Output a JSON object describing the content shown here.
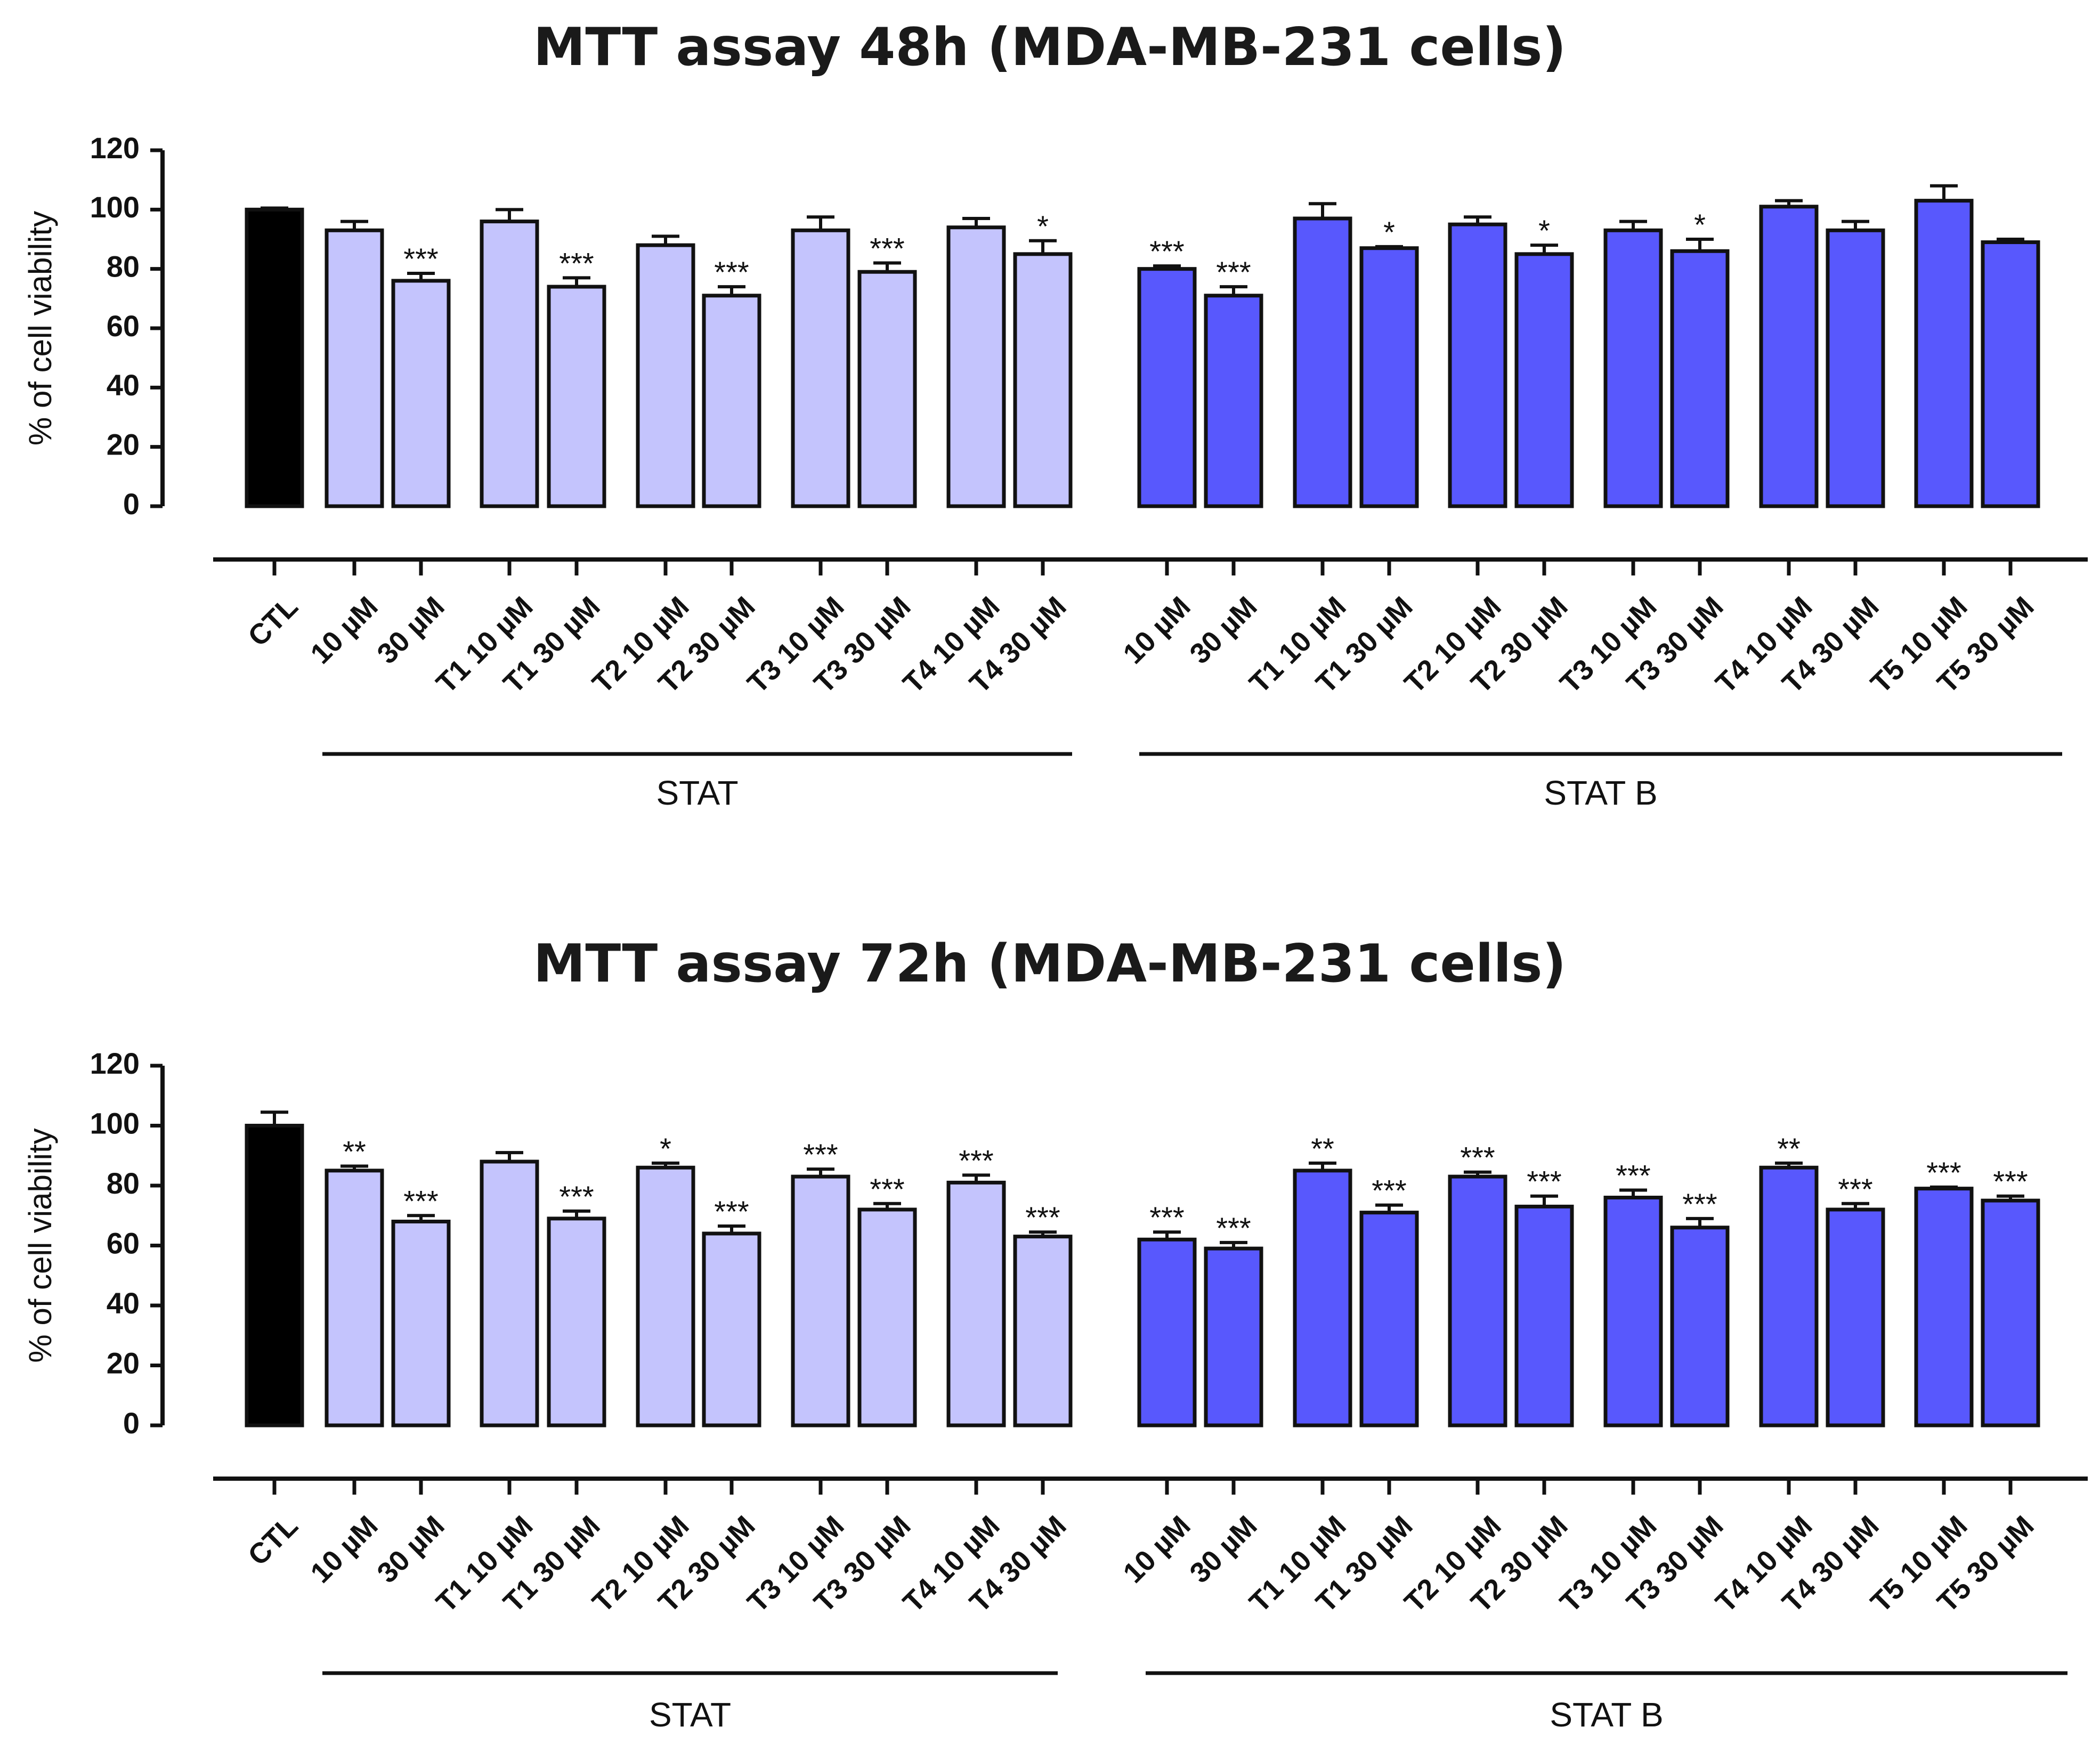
{
  "chart_data": [
    {
      "type": "bar",
      "title": "MTT assay 48h (MDA-MB-231 cells)",
      "ylabel": "% of cell viability",
      "xlabel": "",
      "ylim": [
        0,
        120
      ],
      "yticks": [
        0,
        20,
        40,
        60,
        80,
        100,
        120
      ],
      "categories": [
        "CTL",
        "10 µM",
        "30 µM",
        "T1 10 µM",
        "T1 30 µM",
        "T2 10 µM",
        "T2 30 µM",
        "T3 10 µM",
        "T3 30 µM",
        "T4 10 µM",
        "T4 30 µM",
        "10 µM",
        "30 µM",
        "T1 10 µM",
        "T1 30 µM",
        "T2 10 µM",
        "T2 30 µM",
        "T3 10 µM",
        "T3 30 µM",
        "T4 10 µM",
        "T4 30 µM",
        "T5 10 µM",
        "T5 30 µM"
      ],
      "values": [
        100,
        93,
        76,
        96,
        74,
        88,
        71,
        93,
        79,
        94,
        85,
        80,
        71,
        97,
        87,
        95,
        85,
        93,
        86,
        101,
        93,
        103,
        89
      ],
      "errors": [
        0.5,
        3,
        2.5,
        4,
        3,
        3,
        3,
        4.5,
        3,
        3,
        4.5,
        1,
        3,
        5,
        0.5,
        2.5,
        3,
        3,
        4,
        2,
        3,
        5,
        1
      ],
      "significance": [
        "",
        "",
        "***",
        "",
        "***",
        "",
        "***",
        "",
        "***",
        "",
        "*",
        "***",
        "***",
        "",
        "*",
        "",
        "*",
        "",
        "*",
        "",
        "",
        "",
        ""
      ],
      "groups": [
        {
          "label": "STAT",
          "categories": [
            "10 µM",
            "30 µM",
            "T1 10 µM",
            "T1 30 µM",
            "T2 10 µM",
            "T2 30 µM",
            "T3 10 µM",
            "T3 30 µM",
            "T4 10 µM",
            "T4 30 µM"
          ]
        },
        {
          "label": "STAT B",
          "categories": [
            "10 µM",
            "30 µM",
            "T1 10 µM",
            "T1 30 µM",
            "T2 10 µM",
            "T2 30 µM",
            "T3 10 µM",
            "T3 30 µM",
            "T4 10 µM",
            "T4 30 µM",
            "T5 10 µM",
            "T5 30 µM"
          ]
        }
      ],
      "colors": {
        "CTL": "#000000",
        "STAT": "#c4c4fd",
        "STAT B": "#5858fd"
      }
    },
    {
      "type": "bar",
      "title": "MTT assay 72h (MDA-MB-231 cells)",
      "ylabel": "% of cell viability",
      "xlabel": "",
      "ylim": [
        0,
        120
      ],
      "yticks": [
        0,
        20,
        40,
        60,
        80,
        100,
        120
      ],
      "categories": [
        "CTL",
        "10 µM",
        "30 µM",
        "T1 10 µM",
        "T1 30 µM",
        "T2 10 µM",
        "T2 30 µM",
        "T3 10 µM",
        "T3 30 µM",
        "T4 10 µM",
        "T4 30 µM",
        "10 µM",
        "30 µM",
        "T1 10 µM",
        "T1 30 µM",
        "T2 10 µM",
        "T2 30 µM",
        "T3 10 µM",
        "T3 30 µM",
        "T4 10 µM",
        "T4 30 µM",
        "T5 10 µM",
        "T5 30 µM"
      ],
      "values": [
        100,
        85,
        68,
        88,
        69,
        86,
        64,
        83,
        72,
        81,
        63,
        62,
        59,
        85,
        71,
        83,
        73,
        76,
        66,
        86,
        72,
        79,
        75
      ],
      "errors": [
        4.5,
        1.5,
        2,
        3,
        2.5,
        1.5,
        2.5,
        2.5,
        2,
        2.5,
        1.5,
        2.5,
        2,
        2.5,
        2.5,
        1.5,
        3.5,
        2.5,
        3,
        1.5,
        2,
        0.5,
        1.5
      ],
      "significance": [
        "",
        "**",
        "***",
        "",
        "***",
        "*",
        "***",
        "***",
        "***",
        "***",
        "***",
        "***",
        "***",
        "**",
        "***",
        "***",
        "***",
        "***",
        "***",
        "**",
        "***",
        "***",
        "***"
      ],
      "groups": [
        {
          "label": "STAT",
          "categories": [
            "10 µM",
            "30 µM",
            "T1 10 µM",
            "T1 30 µM",
            "T2 10 µM",
            "T2 30 µM",
            "T3 10 µM",
            "T3 30 µM",
            "T4 10 µM",
            "T4 30 µM"
          ]
        },
        {
          "label": "STAT B",
          "categories": [
            "10 µM",
            "30 µM",
            "T1 10 µM",
            "T1 30 µM",
            "T2 10 µM",
            "T2 30 µM",
            "T3 10 µM",
            "T3 30 µM",
            "T4 10 µM",
            "T4 30 µM",
            "T5 10 µM",
            "T5 30 µM"
          ]
        }
      ],
      "colors": {
        "CTL": "#000000",
        "STAT": "#c4c4fd",
        "STAT B": "#5858fd"
      }
    }
  ]
}
